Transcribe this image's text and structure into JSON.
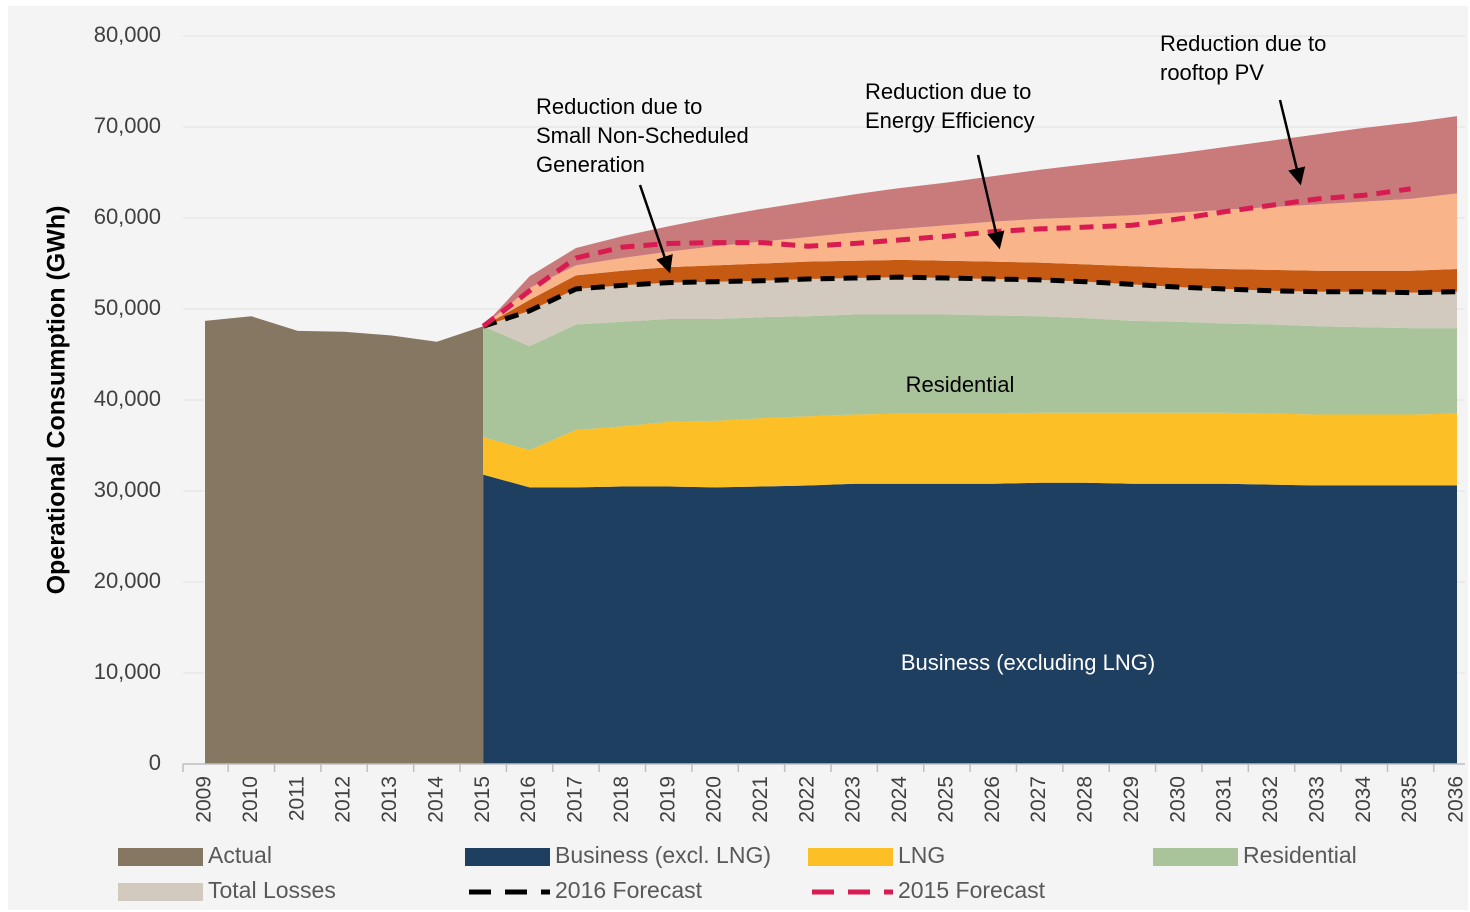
{
  "chart_data": {
    "type": "area",
    "stacked": true,
    "ylabel": "Operational Consumption (GWh)",
    "categories": [
      "2009",
      "2010",
      "2011",
      "2012",
      "2013",
      "2014",
      "2015",
      "2016",
      "2017",
      "2018",
      "2019",
      "2020",
      "2021",
      "2022",
      "2023",
      "2024",
      "2025",
      "2026",
      "2027",
      "2028",
      "2029",
      "2030",
      "2031",
      "2032",
      "2033",
      "2034",
      "2035",
      "2036"
    ],
    "ylim": [
      0,
      80000
    ],
    "yticks": [
      0,
      {
        "value": 10000,
        "label": "10,000"
      },
      {
        "value": 20000,
        "label": "20,000"
      },
      {
        "value": 30000,
        "label": "30,000"
      },
      {
        "value": 40000,
        "label": "40,000"
      },
      {
        "value": 50000,
        "label": "50,000"
      },
      {
        "value": 60000,
        "label": "60,000"
      },
      {
        "value": 70000,
        "label": "70,000"
      },
      {
        "value": 80000,
        "label": "80,000"
      }
    ],
    "grid": true,
    "series": [
      {
        "name": "Actual",
        "color": "#857762",
        "kind": "area",
        "stack": false,
        "values": [
          48700,
          49200,
          47600,
          47500,
          47100,
          46400,
          48100,
          null,
          null,
          null,
          null,
          null,
          null,
          null,
          null,
          null,
          null,
          null,
          null,
          null,
          null,
          null,
          null,
          null,
          null,
          null,
          null,
          null
        ]
      },
      {
        "name": "Business (excl. LNG)",
        "color": "#1f3f61",
        "kind": "area",
        "stack": true,
        "values": [
          null,
          null,
          null,
          null,
          null,
          null,
          31800,
          30400,
          30400,
          30500,
          30500,
          30400,
          30500,
          30600,
          30800,
          30800,
          30800,
          30800,
          30900,
          30900,
          30800,
          30800,
          30800,
          30700,
          30600,
          30600,
          30600,
          30600
        ]
      },
      {
        "name": "LNG",
        "color": "#fdbf26",
        "kind": "area",
        "stack": true,
        "values": [
          null,
          null,
          null,
          null,
          null,
          null,
          4100,
          4100,
          6300,
          6600,
          7100,
          7300,
          7500,
          7600,
          7600,
          7700,
          7700,
          7700,
          7700,
          7700,
          7800,
          7800,
          7800,
          7800,
          7800,
          7800,
          7800,
          7900
        ]
      },
      {
        "name": "Residential",
        "color": "#a9c49a",
        "kind": "area",
        "stack": true,
        "values": [
          null,
          null,
          null,
          null,
          null,
          null,
          12200,
          11400,
          11600,
          11500,
          11300,
          11200,
          11100,
          11000,
          11000,
          10900,
          10900,
          10800,
          10600,
          10400,
          10100,
          10000,
          9800,
          9800,
          9700,
          9600,
          9500,
          9400
        ]
      },
      {
        "name": "Total Losses",
        "color": "#d2cabf",
        "kind": "area",
        "stack": true,
        "values": [
          null,
          null,
          null,
          null,
          null,
          null,
          0,
          3900,
          3900,
          4000,
          4000,
          4100,
          4000,
          4100,
          4000,
          4100,
          4000,
          4000,
          4000,
          4000,
          4000,
          3800,
          3800,
          3700,
          3800,
          3900,
          3900,
          4000
        ]
      },
      {
        "name": "2016 Forecast",
        "color": "#000000",
        "kind": "line",
        "values": [
          null,
          null,
          null,
          null,
          null,
          null,
          48100,
          49800,
          52200,
          52600,
          52900,
          53000,
          53100,
          53300,
          53400,
          53500,
          53400,
          53300,
          53200,
          53000,
          52700,
          52400,
          52200,
          52000,
          51900,
          51900,
          51800,
          51900
        ]
      },
      {
        "name": "2015 Forecast",
        "color": "#d81b50",
        "kind": "line",
        "values": [
          null,
          null,
          null,
          null,
          null,
          null,
          48100,
          52000,
          55600,
          56800,
          57200,
          57300,
          57300,
          56900,
          57200,
          57600,
          58000,
          58500,
          58800,
          59000,
          59200,
          59900,
          60700,
          61400,
          62100,
          62500,
          63200,
          null
        ]
      },
      {
        "color": "#c65a12",
        "kind": "area",
        "stack": true,
        "values": [
          null,
          null,
          null,
          null,
          null,
          null,
          0,
          1200,
          1500,
          1600,
          1700,
          1800,
          1900,
          1900,
          1900,
          1900,
          1900,
          1900,
          1900,
          1900,
          2000,
          2100,
          2200,
          2300,
          2300,
          2300,
          2400,
          2500
        ]
      },
      {
        "color": "#f9b48a",
        "kind": "area",
        "stack": true,
        "values": [
          null,
          null,
          null,
          null,
          null,
          null,
          0,
          1300,
          1100,
          1400,
          1700,
          2100,
          2400,
          2700,
          3100,
          3400,
          3900,
          4400,
          4800,
          5200,
          5600,
          6100,
          6500,
          6900,
          7300,
          7600,
          7900,
          8300
        ]
      },
      {
        "color": "#c97b7c",
        "kind": "area",
        "stack": true,
        "values": [
          null,
          null,
          null,
          null,
          null,
          null,
          0,
          1300,
          1900,
          2400,
          2800,
          3200,
          3600,
          3900,
          4200,
          4500,
          4700,
          5000,
          5400,
          5800,
          6200,
          6500,
          6900,
          7300,
          7700,
          8100,
          8400,
          8500
        ]
      }
    ],
    "area_labels": [
      "Residential",
      "Business (excluding LNG)"
    ],
    "annotations": [
      [
        "Reduction due to",
        "Small Non-Scheduled",
        "Generation"
      ],
      [
        "Reduction due to",
        "Energy Efficiency"
      ],
      [
        "Reduction due to",
        "rooftop PV"
      ]
    ]
  }
}
